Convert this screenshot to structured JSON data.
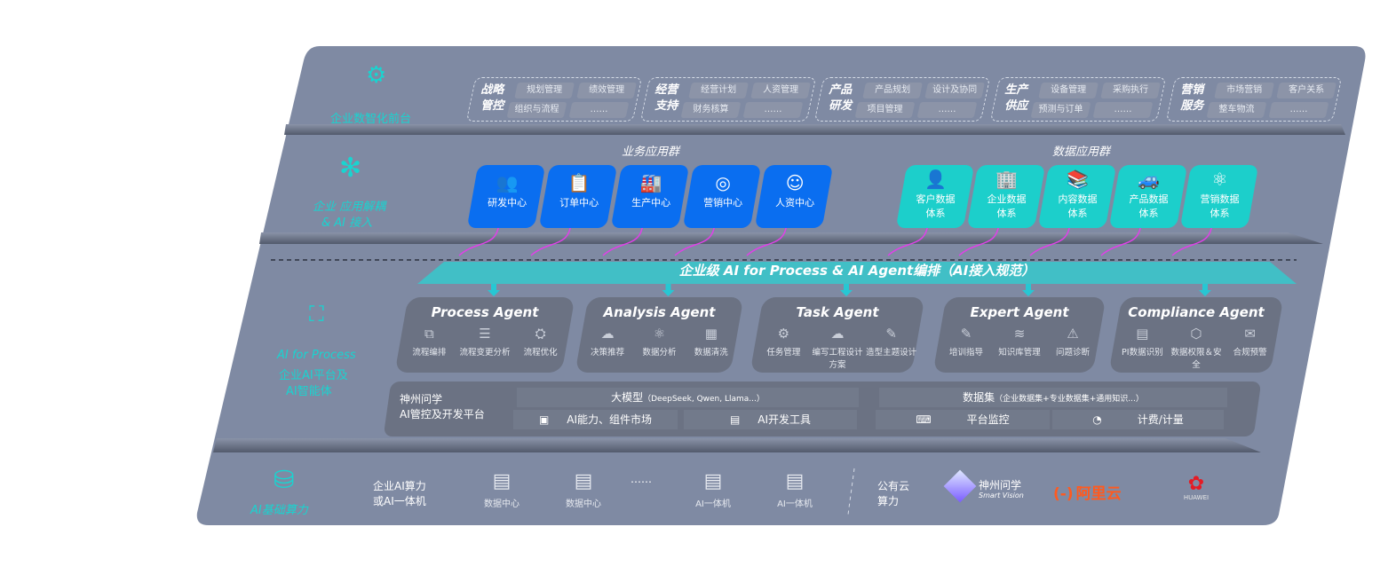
{
  "colors": {
    "panel": "#7f8aa3",
    "accent_cyan": "#19d4d0",
    "business_blue": "#0a6ef0",
    "data_teal": "#1ccfcb",
    "arrow_magenta": "#e040e8",
    "agent_card": "#6b7283"
  },
  "tier1": {
    "icon": "brain-icon",
    "label": "企业数智化前台",
    "groups": [
      {
        "title": "战略管控",
        "items": [
          "规划管理",
          "绩效管理",
          "组织与流程",
          "……"
        ]
      },
      {
        "title": "经营支持",
        "items": [
          "经营计划",
          "人资管理",
          "财务核算",
          "……"
        ]
      },
      {
        "title": "产品研发",
        "items": [
          "产品规划",
          "设计及协同",
          "项目管理",
          "……"
        ]
      },
      {
        "title": "生产供应",
        "items": [
          "设备管理",
          "采购执行",
          "预测与订单",
          "……"
        ]
      },
      {
        "title": "营销服务",
        "items": [
          "市场营销",
          "客户关系",
          "整车物流",
          "……"
        ]
      }
    ]
  },
  "tier2": {
    "icon": "molecule-icon",
    "label_line1": "企业 应用解耦",
    "label_line2": "& AI 接入",
    "business_title": "业务应用群",
    "data_title": "数据应用群",
    "business": [
      {
        "label": "研发中心",
        "icon": "users-icon"
      },
      {
        "label": "订单中心",
        "icon": "clipboard-icon"
      },
      {
        "label": "生产中心",
        "icon": "factory-icon"
      },
      {
        "label": "营销中心",
        "icon": "target-icon"
      },
      {
        "label": "人资中心",
        "icon": "person-icon"
      }
    ],
    "data": [
      {
        "l1": "客户数据",
        "l2": "体系",
        "icon": "user-icon"
      },
      {
        "l1": "企业数据",
        "l2": "体系",
        "icon": "building-icon"
      },
      {
        "l1": "内容数据",
        "l2": "体系",
        "icon": "books-icon"
      },
      {
        "l1": "产品数据",
        "l2": "体系",
        "icon": "car-icon"
      },
      {
        "l1": "营销数据",
        "l2": "体系",
        "icon": "atom-icon"
      }
    ]
  },
  "banner": "企业级 AI for Process & AI Agent编排（AI接入规范）",
  "tier3": {
    "icon": "face-scan-icon",
    "label_line1": "AI for Process",
    "label_line2": "企业AI平台及",
    "label_line3": "AI智能体",
    "agents": [
      {
        "name": "Process Agent",
        "items": [
          "流程编排",
          "流程变更分析",
          "流程优化"
        ]
      },
      {
        "name": "Analysis Agent",
        "items": [
          "决策推荐",
          "数据分析",
          "数据清洗"
        ]
      },
      {
        "name": "Task Agent",
        "items": [
          "任务管理",
          "编写工程设计方案",
          "造型主题设计"
        ]
      },
      {
        "name": "Expert Agent",
        "items": [
          "培训指导",
          "知识库管理",
          "问题诊断"
        ]
      },
      {
        "name": "Compliance Agent",
        "items": [
          "PI数据识别",
          "数据权限＆安全",
          "合规预警"
        ]
      }
    ],
    "platform": {
      "title_line1": "神州问学",
      "title_line2": "AI管控及开发平台",
      "model": "大模型",
      "model_note": "（DeepSeek, Qwen, Llama...）",
      "dataset": "数据集",
      "dataset_note": "（企业数据集+专业数据集+通用知识...）",
      "market": "AI能力、组件市场",
      "devtools": "AI开发工具",
      "monitor": "平台监控",
      "billing": "计费/计量"
    }
  },
  "tier4": {
    "icon": "database-icon",
    "label": "AI基础算力",
    "compute_line1": "企业AI算力",
    "compute_line2": "或AI一体机",
    "servers": [
      "数据中心",
      "数据中心",
      "AI一体机",
      "AI一体机"
    ],
    "ellipsis": "……",
    "cloud_line1": "公有云",
    "cloud_line2": "算力",
    "vendor1": "神州问学",
    "vendor1_en": "Smart Vision",
    "vendor2": "阿里云",
    "vendor3": "HUAWEI"
  }
}
